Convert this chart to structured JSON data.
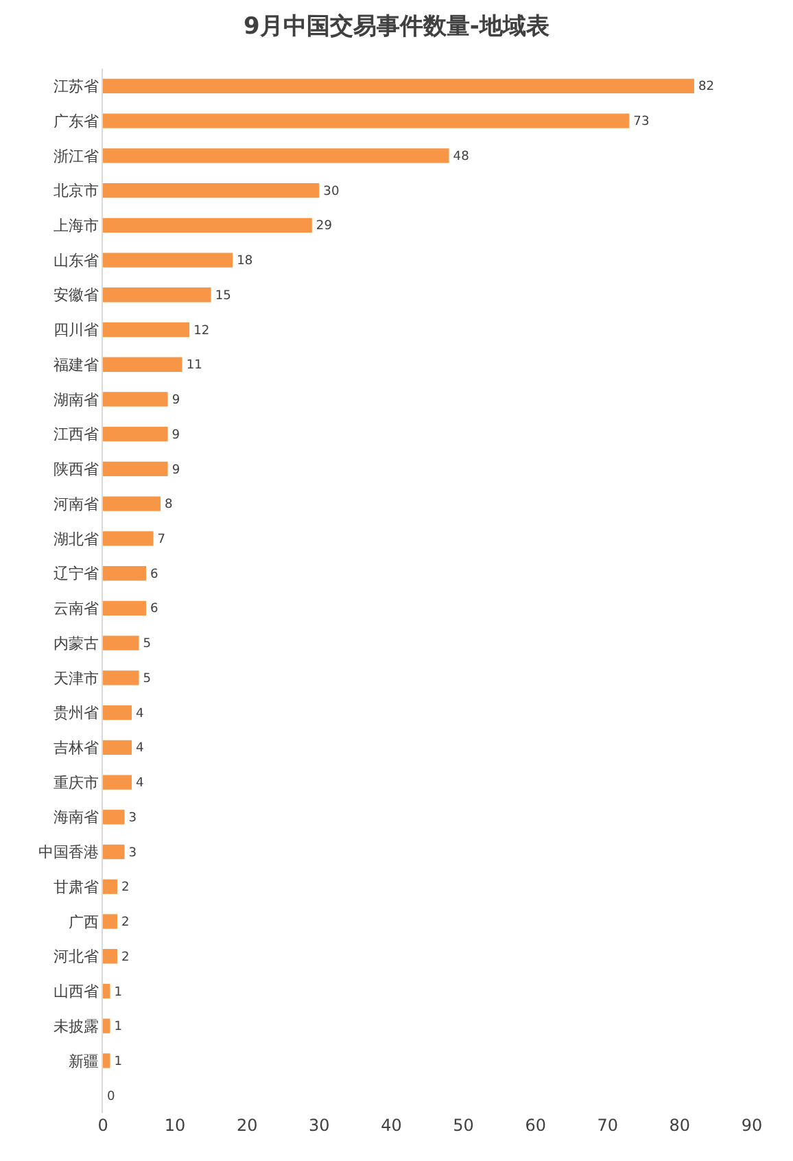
{
  "chart_data": {
    "type": "bar",
    "orientation": "horizontal",
    "title": "9月中国交易事件数量-地域表",
    "categories": [
      "江苏省",
      "广东省",
      "浙江省",
      "北京市",
      "上海市",
      "山东省",
      "安徽省",
      "四川省",
      "福建省",
      "湖南省",
      "江西省",
      "陕西省",
      "河南省",
      "湖北省",
      "辽宁省",
      "云南省",
      "内蒙古",
      "天津市",
      "贵州省",
      "吉林省",
      "重庆市",
      "海南省",
      "中国香港",
      "甘肃省",
      "广西",
      "河北省",
      "山西省",
      "未披露",
      "新疆",
      null
    ],
    "values": [
      82,
      73,
      48,
      30,
      29,
      18,
      15,
      12,
      11,
      9,
      9,
      9,
      8,
      7,
      6,
      6,
      5,
      5,
      4,
      4,
      4,
      3,
      3,
      2,
      2,
      2,
      1,
      1,
      1,
      0
    ],
    "color": "#f79646",
    "xlim": [
      0,
      90
    ],
    "xticks": [
      0,
      10,
      20,
      30,
      40,
      50,
      60,
      70,
      80,
      90
    ],
    "data_labels": true,
    "grid": false
  }
}
